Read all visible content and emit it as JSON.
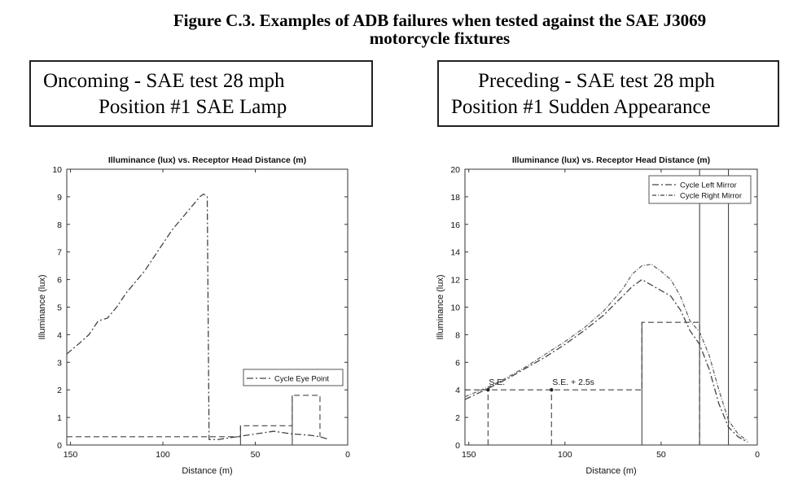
{
  "figure": {
    "title_line1": "Figure C.3. Examples of ADB failures when tested against the SAE J3069",
    "title_line2": "motorcycle fixtures"
  },
  "boxes": [
    {
      "line1": "Oncoming - SAE test 28 mph",
      "line2": "Position #1 SAE Lamp"
    },
    {
      "line1": "Preceding - SAE test 28 mph",
      "line2": "Position #1 Sudden Appearance"
    }
  ],
  "chart_data": [
    {
      "type": "line",
      "title": "Illuminance (lux) vs. Receptor Head Distance (m)",
      "xlabel": "Distance (m)",
      "ylabel": "Illuminance (lux)",
      "x_reversed": true,
      "xlim": [
        152,
        0
      ],
      "ylim": [
        0,
        10
      ],
      "xticks": [
        "150",
        "100",
        "50",
        "0"
      ],
      "yticks": [
        "0",
        "1",
        "2",
        "3",
        "4",
        "5",
        "6",
        "7",
        "8",
        "9",
        "10"
      ],
      "legend_position": "lower-right",
      "series": [
        {
          "name": "Cycle Eye Point",
          "style": "dash-dot",
          "x": [
            152,
            145,
            140,
            135,
            130,
            125,
            120,
            115,
            110,
            105,
            100,
            95,
            90,
            85,
            80,
            78,
            76,
            75,
            70,
            65,
            60,
            55,
            50,
            45,
            40,
            35,
            30,
            25,
            20,
            15,
            10
          ],
          "y": [
            3.3,
            3.7,
            4.0,
            4.5,
            4.6,
            5.0,
            5.5,
            5.9,
            6.3,
            6.8,
            7.3,
            7.8,
            8.2,
            8.6,
            9.0,
            9.1,
            9.0,
            0.2,
            0.2,
            0.25,
            0.3,
            0.35,
            0.4,
            0.45,
            0.5,
            0.45,
            0.4,
            0.38,
            0.35,
            0.3,
            0.2
          ]
        }
      ],
      "threshold_segments": [
        {
          "style": "dashed",
          "x": [
            152,
            58,
            58,
            30,
            30,
            15,
            15
          ],
          "y": [
            0.3,
            0.3,
            0.7,
            0.7,
            1.8,
            1.8,
            0.3
          ]
        },
        {
          "style": "solid",
          "x": [
            30,
            30
          ],
          "y": [
            0,
            1.8
          ]
        },
        {
          "style": "solid",
          "x": [
            58,
            58
          ],
          "y": [
            0,
            0.7
          ]
        }
      ]
    },
    {
      "type": "line",
      "title": "Illuminance (lux) vs. Receptor Head Distance (m)",
      "xlabel": "Distance (m)",
      "ylabel": "Illuminance (lux)",
      "x_reversed": true,
      "xlim": [
        152,
        0
      ],
      "ylim": [
        0,
        20
      ],
      "xticks": [
        "150",
        "100",
        "50",
        "0"
      ],
      "yticks": [
        "0",
        "2",
        "4",
        "6",
        "8",
        "10",
        "12",
        "14",
        "16",
        "18",
        "20"
      ],
      "legend_position": "top-right",
      "series": [
        {
          "name": "Cycle Left Mirror",
          "style": "dash-dot",
          "x": [
            152,
            140,
            130,
            120,
            110,
            100,
            90,
            80,
            70,
            65,
            60,
            55,
            50,
            45,
            40,
            35,
            30,
            25,
            20,
            15,
            10,
            5
          ],
          "y": [
            3.3,
            4.1,
            4.8,
            5.6,
            6.4,
            7.3,
            8.3,
            9.4,
            10.8,
            11.5,
            12.0,
            11.6,
            11.2,
            10.8,
            9.8,
            8.3,
            7.3,
            5.5,
            3.0,
            1.3,
            0.6,
            0.2
          ]
        },
        {
          "name": "Cycle Right Mirror",
          "style": "dash-dot",
          "x": [
            152,
            140,
            130,
            120,
            110,
            100,
            90,
            80,
            70,
            65,
            60,
            55,
            50,
            45,
            40,
            35,
            30,
            25,
            20,
            15,
            10,
            5
          ],
          "y": [
            3.5,
            4.2,
            4.9,
            5.7,
            6.6,
            7.5,
            8.5,
            9.7,
            11.3,
            12.4,
            13.0,
            13.1,
            12.6,
            12.0,
            10.8,
            9.0,
            8.2,
            6.5,
            4.0,
            1.8,
            0.8,
            0.3
          ]
        }
      ],
      "threshold_segments": [
        {
          "style": "dashed",
          "x": [
            152,
            60,
            60,
            30,
            30
          ],
          "y": [
            4,
            4,
            8.9,
            8.9,
            0
          ]
        },
        {
          "style": "solid",
          "x": [
            60,
            60
          ],
          "y": [
            0,
            8.9
          ]
        },
        {
          "style": "solid",
          "x": [
            30,
            30
          ],
          "y": [
            0,
            20
          ]
        },
        {
          "style": "solid",
          "x": [
            15,
            15
          ],
          "y": [
            0,
            20
          ]
        },
        {
          "style": "dashed",
          "x": [
            140,
            140
          ],
          "y": [
            0,
            4
          ]
        },
        {
          "style": "dashed",
          "x": [
            107,
            107
          ],
          "y": [
            0,
            4
          ]
        }
      ],
      "annotations": [
        {
          "text": "S.E.",
          "x": 140,
          "y": 4
        },
        {
          "text": "S.E. + 2.5s",
          "x": 107,
          "y": 4
        }
      ]
    }
  ]
}
